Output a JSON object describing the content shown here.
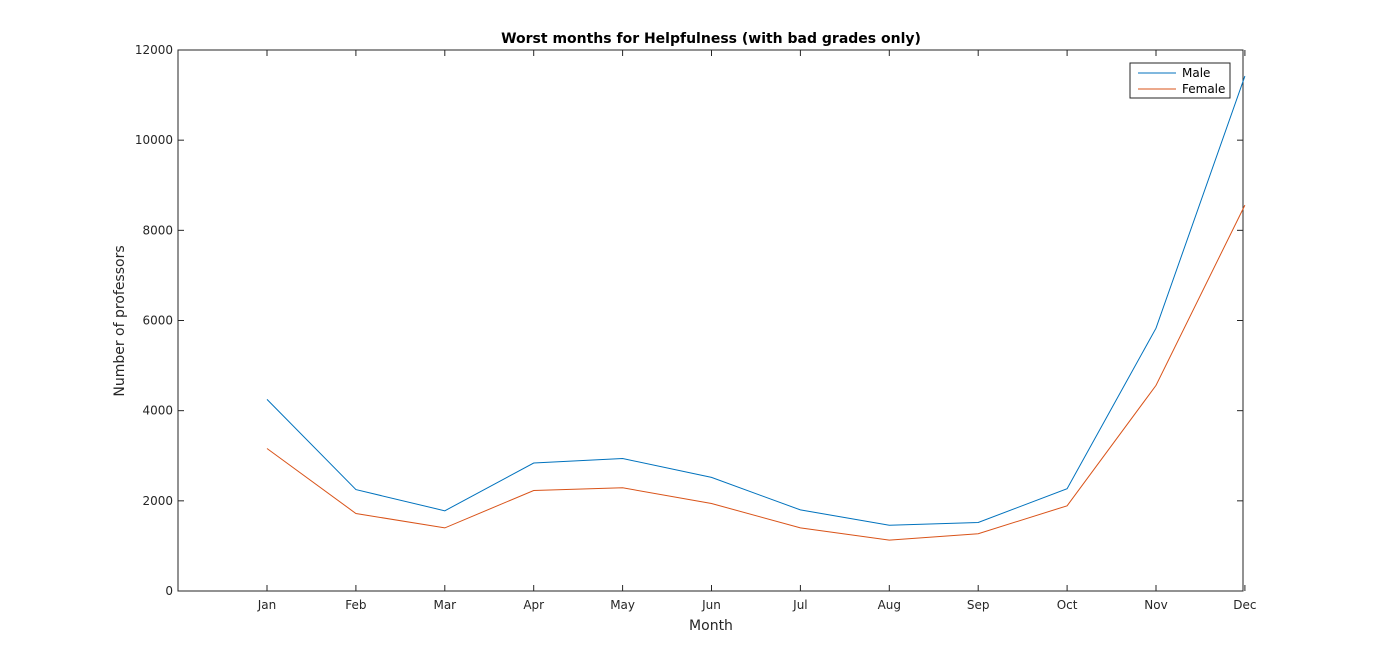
{
  "chart_data": {
    "type": "line",
    "title": "Worst months for Helpfulness (with bad grades only)",
    "xlabel": "Month",
    "ylabel": "Number of professors",
    "categories": [
      "Jan",
      "Feb",
      "Mar",
      "Apr",
      "May",
      "Jun",
      "Jul",
      "Aug",
      "Sep",
      "Oct",
      "Nov",
      "Dec"
    ],
    "ylim": [
      0,
      12000
    ],
    "yticks": [
      0,
      2000,
      4000,
      6000,
      8000,
      10000,
      12000
    ],
    "grid": false,
    "legend_position": "top-right",
    "series": [
      {
        "name": "Male",
        "color": "#0072BD",
        "values": [
          4250,
          2250,
          1780,
          2840,
          2940,
          2520,
          1800,
          1460,
          1520,
          2270,
          5830,
          11420
        ]
      },
      {
        "name": "Female",
        "color": "#D95319",
        "values": [
          3160,
          1720,
          1400,
          2230,
          2290,
          1940,
          1400,
          1130,
          1270,
          1890,
          4560,
          8560
        ]
      }
    ]
  }
}
